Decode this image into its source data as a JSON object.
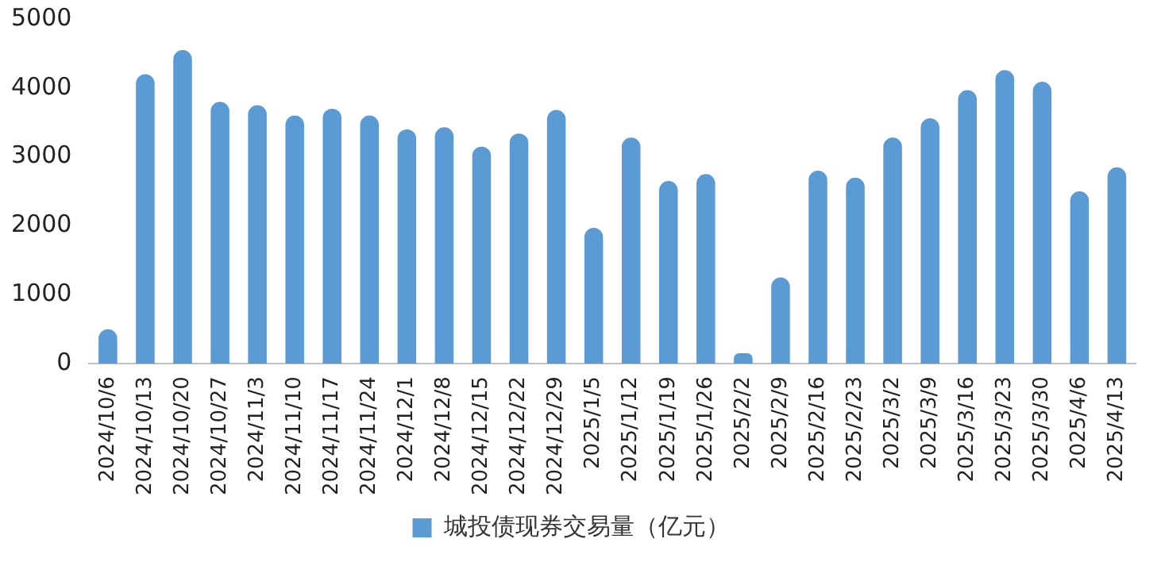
{
  "chart_data": {
    "type": "bar",
    "categories": [
      "2024/10/6",
      "2024/10/13",
      "2024/10/20",
      "2024/10/27",
      "2024/11/3",
      "2024/11/10",
      "2024/11/17",
      "2024/11/24",
      "2024/12/1",
      "2024/12/8",
      "2024/12/15",
      "2024/12/22",
      "2024/12/29",
      "2025/1/5",
      "2025/1/12",
      "2025/1/19",
      "2025/1/26",
      "2025/2/2",
      "2025/2/9",
      "2025/2/16",
      "2025/2/23",
      "2025/3/2",
      "2025/3/9",
      "2025/3/16",
      "2025/3/23",
      "2025/3/30",
      "2025/4/6",
      "2025/4/13"
    ],
    "series": [
      {
        "name": "城投债现券交易量（亿元）",
        "color": "#5b9bd5",
        "values": [
          500,
          4200,
          4550,
          3800,
          3750,
          3600,
          3700,
          3600,
          3400,
          3430,
          3150,
          3340,
          3680,
          1970,
          3280,
          2650,
          2750,
          150,
          1250,
          2800,
          2700,
          3280,
          3560,
          3970,
          4260,
          4090,
          2500,
          2850
        ]
      }
    ],
    "ylim": [
      0,
      5000
    ],
    "yticks": [
      0,
      1000,
      2000,
      3000,
      4000,
      5000
    ],
    "grid": false,
    "legend": "bottom"
  }
}
